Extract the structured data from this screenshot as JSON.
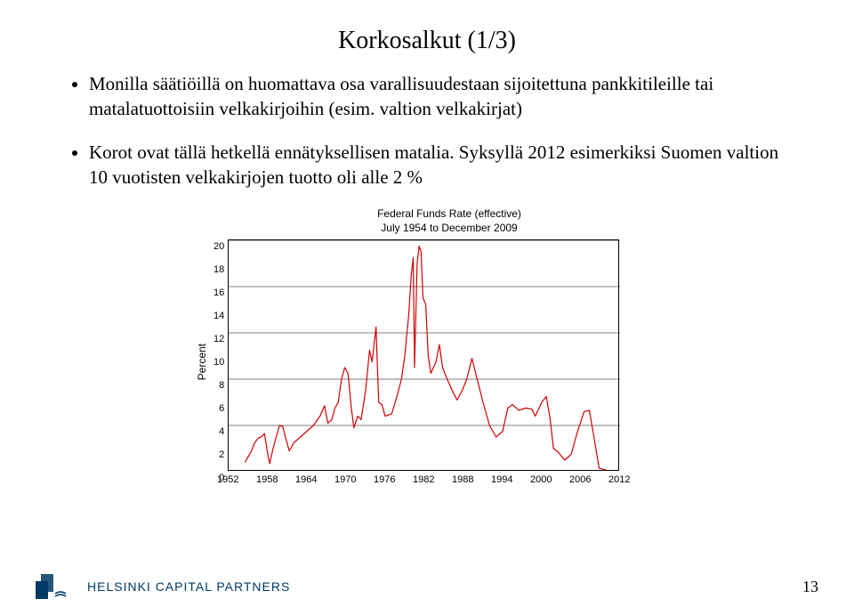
{
  "title": "Korkosalkut (1/3)",
  "bullets": [
    "Monilla säätiöillä on huomattava osa varallisuudestaan sijoitettuna pankkitileille tai matalatuottoisiin velkakirjoihin (esim. valtion velkakirjat)",
    "Korot ovat tällä hetkellä ennätyksellisen matalia. Syksyllä 2012 esimerkiksi Suomen valtion 10 vuotisten velkakirjojen tuotto oli alle 2 %"
  ],
  "chart": {
    "type": "line",
    "title_line1": "Federal Funds Rate (effective)",
    "title_line2": "July 1954 to December 2009",
    "ylabel": "Percent",
    "ylim": [
      0,
      20
    ],
    "ytick_step": 2,
    "yticks": [
      "20",
      "18",
      "16",
      "14",
      "12",
      "10",
      "8",
      "6",
      "4",
      "2",
      "0"
    ],
    "grid_y": [
      4,
      8,
      12,
      16,
      20
    ],
    "xlim": [
      1952,
      2012
    ],
    "xticks": [
      1952,
      1958,
      1964,
      1970,
      1976,
      1982,
      1988,
      1994,
      2000,
      2006,
      2012
    ],
    "line_color": "#d40000",
    "line_width": 1.2,
    "grid_color": "#000000",
    "grid_width": 0.5,
    "background": "#ffffff",
    "data": [
      [
        1954.5,
        0.8
      ],
      [
        1955.0,
        1.3
      ],
      [
        1955.5,
        1.8
      ],
      [
        1956.0,
        2.5
      ],
      [
        1956.5,
        2.9
      ],
      [
        1957.0,
        3.0
      ],
      [
        1957.5,
        3.3
      ],
      [
        1958.0,
        1.5
      ],
      [
        1958.3,
        0.7
      ],
      [
        1958.8,
        2.0
      ],
      [
        1959.3,
        3.0
      ],
      [
        1959.8,
        4.0
      ],
      [
        1960.3,
        3.9
      ],
      [
        1960.8,
        2.8
      ],
      [
        1961.3,
        1.8
      ],
      [
        1962.0,
        2.5
      ],
      [
        1963.0,
        3.0
      ],
      [
        1964.0,
        3.5
      ],
      [
        1965.0,
        4.0
      ],
      [
        1966.0,
        4.8
      ],
      [
        1966.7,
        5.7
      ],
      [
        1967.2,
        4.2
      ],
      [
        1967.8,
        4.5
      ],
      [
        1968.3,
        5.5
      ],
      [
        1968.8,
        6.0
      ],
      [
        1969.3,
        8.0
      ],
      [
        1969.8,
        9.0
      ],
      [
        1970.3,
        8.5
      ],
      [
        1970.8,
        5.5
      ],
      [
        1971.2,
        3.8
      ],
      [
        1971.8,
        4.8
      ],
      [
        1972.3,
        4.5
      ],
      [
        1973.0,
        7.0
      ],
      [
        1973.6,
        10.5
      ],
      [
        1974.0,
        9.5
      ],
      [
        1974.6,
        12.5
      ],
      [
        1975.0,
        6.0
      ],
      [
        1975.5,
        5.8
      ],
      [
        1976.0,
        4.8
      ],
      [
        1977.0,
        5.0
      ],
      [
        1977.8,
        6.5
      ],
      [
        1978.5,
        8.0
      ],
      [
        1979.0,
        10.0
      ],
      [
        1979.6,
        13.5
      ],
      [
        1980.0,
        17.0
      ],
      [
        1980.3,
        18.5
      ],
      [
        1980.5,
        9.0
      ],
      [
        1980.9,
        18.0
      ],
      [
        1981.2,
        19.5
      ],
      [
        1981.5,
        19.0
      ],
      [
        1981.8,
        15.0
      ],
      [
        1982.2,
        14.5
      ],
      [
        1982.6,
        10.0
      ],
      [
        1983.0,
        8.5
      ],
      [
        1983.8,
        9.5
      ],
      [
        1984.3,
        11.0
      ],
      [
        1984.8,
        9.0
      ],
      [
        1985.5,
        8.0
      ],
      [
        1986.3,
        7.0
      ],
      [
        1987.0,
        6.2
      ],
      [
        1987.8,
        7.0
      ],
      [
        1988.5,
        8.0
      ],
      [
        1989.3,
        9.8
      ],
      [
        1990.0,
        8.2
      ],
      [
        1991.0,
        6.0
      ],
      [
        1992.0,
        4.0
      ],
      [
        1993.0,
        3.0
      ],
      [
        1994.0,
        3.5
      ],
      [
        1994.8,
        5.5
      ],
      [
        1995.5,
        5.8
      ],
      [
        1996.5,
        5.3
      ],
      [
        1997.5,
        5.5
      ],
      [
        1998.5,
        5.4
      ],
      [
        1999.0,
        4.8
      ],
      [
        2000.0,
        6.0
      ],
      [
        2000.7,
        6.5
      ],
      [
        2001.3,
        4.5
      ],
      [
        2001.8,
        2.0
      ],
      [
        2002.5,
        1.7
      ],
      [
        2003.5,
        1.0
      ],
      [
        2004.5,
        1.5
      ],
      [
        2005.5,
        3.5
      ],
      [
        2006.5,
        5.2
      ],
      [
        2007.3,
        5.3
      ],
      [
        2008.0,
        3.0
      ],
      [
        2008.8,
        0.3
      ],
      [
        2009.9,
        0.15
      ]
    ]
  },
  "brand": "HELSINKI CAPITAL PARTNERS",
  "brand_color": "#003a63",
  "page_number": "13"
}
